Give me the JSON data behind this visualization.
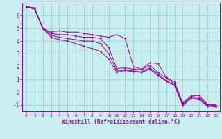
{
  "xlabel": "Windchill (Refroidissement éolien,°C)",
  "background_color": "#c8eef0",
  "line_color": "#990099",
  "grid_color": "#99cccc",
  "xlim": [
    -0.5,
    23.5
  ],
  "ylim": [
    -1.5,
    7.0
  ],
  "yticks": [
    -1,
    0,
    1,
    2,
    3,
    4,
    5,
    6
  ],
  "xticks": [
    0,
    1,
    2,
    3,
    4,
    5,
    6,
    7,
    8,
    9,
    10,
    11,
    12,
    13,
    14,
    15,
    16,
    17,
    18,
    19,
    20,
    21,
    22,
    23
  ],
  "lines": [
    {
      "x": [
        0,
        1,
        2,
        3,
        4,
        5,
        6,
        7,
        8,
        9,
        10,
        11,
        12,
        13,
        14,
        15,
        16,
        17,
        18,
        19,
        20,
        21,
        22,
        23
      ],
      "y": [
        6.7,
        6.6,
        5.0,
        4.7,
        4.8,
        4.7,
        4.7,
        4.6,
        4.5,
        4.4,
        4.3,
        4.5,
        4.2,
        2.0,
        1.8,
        2.3,
        2.25,
        1.15,
        0.8,
        -0.85,
        -0.3,
        -0.25,
        -0.95,
        -1.0
      ]
    },
    {
      "x": [
        0,
        1,
        2,
        3,
        4,
        5,
        6,
        7,
        8,
        9,
        10,
        11,
        12,
        13,
        14,
        15,
        16,
        17,
        18,
        19,
        20,
        21,
        22,
        23
      ],
      "y": [
        6.7,
        6.6,
        5.0,
        4.6,
        4.5,
        4.5,
        4.4,
        4.3,
        4.3,
        4.2,
        3.5,
        1.85,
        1.9,
        1.8,
        1.75,
        2.1,
        1.55,
        1.1,
        0.65,
        -0.9,
        -0.35,
        -0.4,
        -1.0,
        -1.05
      ]
    },
    {
      "x": [
        0,
        1,
        2,
        3,
        4,
        5,
        6,
        7,
        8,
        9,
        10,
        11,
        12,
        13,
        14,
        15,
        16,
        17,
        18,
        19,
        20,
        21,
        22,
        23
      ],
      "y": [
        6.7,
        6.5,
        5.0,
        4.45,
        4.3,
        4.2,
        4.1,
        4.0,
        4.0,
        3.8,
        3.0,
        1.65,
        1.75,
        1.65,
        1.6,
        1.9,
        1.4,
        0.9,
        0.55,
        -1.0,
        -0.45,
        -0.5,
        -1.05,
        -1.1
      ]
    },
    {
      "x": [
        0,
        1,
        2,
        3,
        4,
        5,
        6,
        7,
        8,
        9,
        10,
        11,
        12,
        13,
        14,
        15,
        16,
        17,
        18,
        19,
        20,
        21,
        22,
        23
      ],
      "y": [
        6.7,
        6.5,
        5.0,
        4.3,
        4.1,
        4.0,
        3.8,
        3.6,
        3.4,
        3.2,
        2.6,
        1.55,
        1.7,
        1.6,
        1.55,
        1.8,
        1.3,
        0.85,
        0.5,
        -1.05,
        -0.5,
        -0.6,
        -1.1,
        -1.15
      ]
    }
  ]
}
